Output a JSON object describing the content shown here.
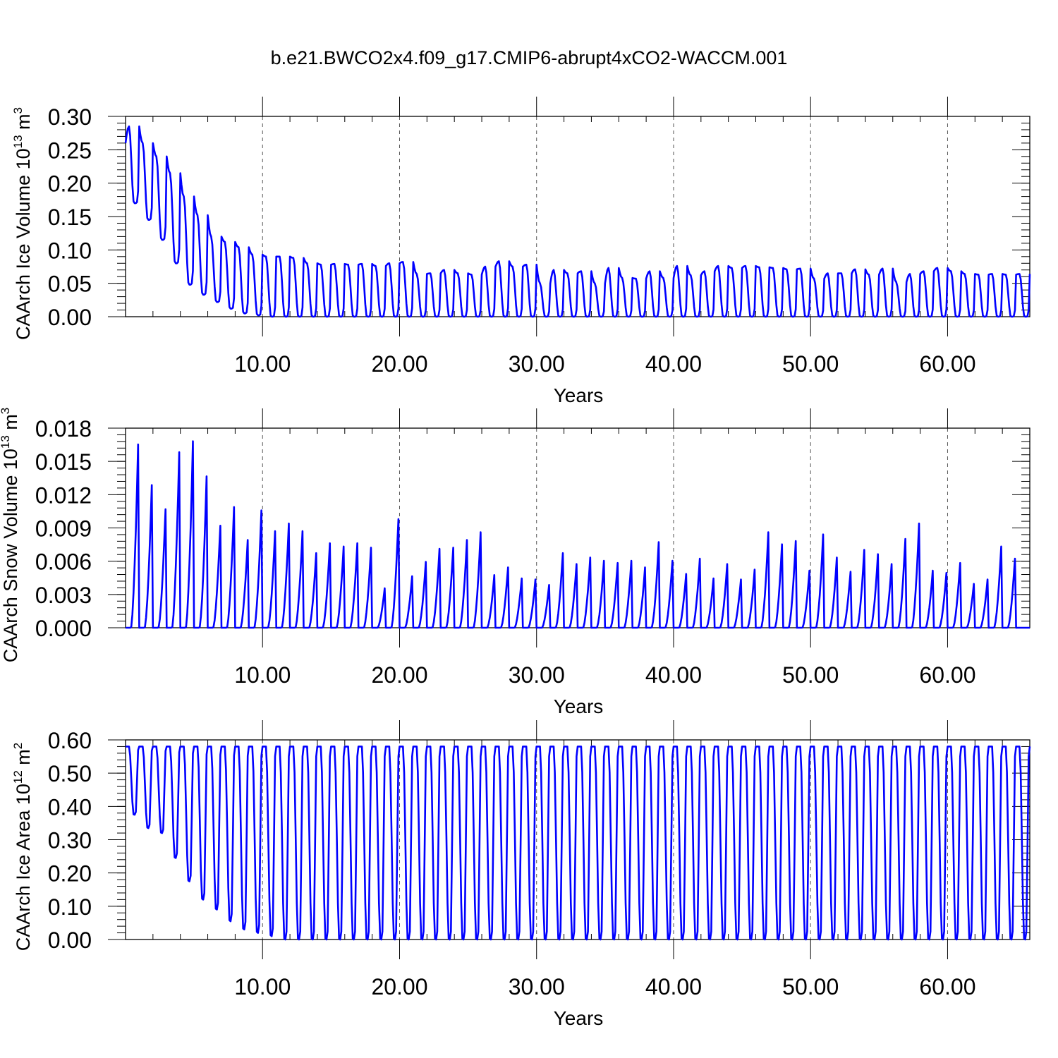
{
  "title": "b.e21.BWCO2x4.f09_g17.CMIP6-abrupt4xCO2-WACCM.001",
  "chart_data": [
    {
      "type": "line",
      "ylabel": "CAArch Ice Volume 10",
      "ylabel_exp": "13",
      "ylabel_unit": " m",
      "ylabel_unit_exp": "3",
      "xlabel": "Years",
      "xlim": [
        0,
        66
      ],
      "ylim": [
        0,
        0.3
      ],
      "x_ticks": [
        10,
        20,
        30,
        40,
        50,
        60
      ],
      "x_tick_labels": [
        "10.00",
        "20.00",
        "30.00",
        "40.00",
        "50.00",
        "60.00"
      ],
      "y_ticks": [
        0,
        0.05,
        0.1,
        0.15,
        0.2,
        0.25,
        0.3
      ],
      "y_tick_labels": [
        "0.00",
        "0.05",
        "0.10",
        "0.15",
        "0.20",
        "0.25",
        "0.30"
      ],
      "vertical_grid": "dashed",
      "series": [
        {
          "color": "#0000ff",
          "cycle_maxima": [
            0.285,
            0.26,
            0.24,
            0.215,
            0.18,
            0.152,
            0.12,
            0.112,
            0.104,
            0.093,
            0.09,
            0.09,
            0.088,
            0.08,
            0.078,
            0.079,
            0.078,
            0.079,
            0.076,
            0.08,
            0.082,
            0.064,
            0.065,
            0.07,
            0.065,
            0.063,
            0.075,
            0.083,
            0.075,
            0.078,
            0.05,
            0.07,
            0.065,
            0.068,
            0.05,
            0.073,
            0.058,
            0.057,
            0.068,
            0.058,
            0.076,
            0.062,
            0.068,
            0.076,
            0.073,
            0.076,
            0.074,
            0.073,
            0.071,
            0.072,
            0.057,
            0.065,
            0.065,
            0.071,
            0.063,
            0.072,
            0.052,
            0.064,
            0.068,
            0.073,
            0.068,
            0.064,
            0.063,
            0.064,
            0.063,
            0.064
          ],
          "cycle_minima": [
            0.195,
            0.17,
            0.145,
            0.115,
            0.08,
            0.048,
            0.033,
            0.022,
            0.012,
            0.005,
            0.002,
            0.0,
            0.0,
            0.0,
            0.0,
            0.0,
            0.0,
            0.0,
            0.0,
            0.0,
            0.0,
            0.0,
            0.0,
            0.0,
            0.0,
            0.0,
            0.0,
            0.0,
            0.0,
            0.0,
            0.0,
            0.0,
            0.0,
            0.0,
            0.0,
            0.0,
            0.0,
            0.0,
            0.0,
            0.0,
            0.0,
            0.0,
            0.0,
            0.0,
            0.0,
            0.0,
            0.0,
            0.0,
            0.0,
            0.0,
            0.0,
            0.0,
            0.0,
            0.0,
            0.0,
            0.0,
            0.0,
            0.0,
            0.0,
            0.0,
            0.0,
            0.0,
            0.0,
            0.0,
            0.0,
            0.0
          ]
        }
      ]
    },
    {
      "type": "line",
      "ylabel": "CAArch Snow Volume 10",
      "ylabel_exp": "13",
      "ylabel_unit": " m",
      "ylabel_unit_exp": "3",
      "xlabel": "Years",
      "xlim": [
        0,
        66
      ],
      "ylim": [
        0,
        0.018
      ],
      "x_ticks": [
        10,
        20,
        30,
        40,
        50,
        60
      ],
      "x_tick_labels": [
        "10.00",
        "20.00",
        "30.00",
        "40.00",
        "50.00",
        "60.00"
      ],
      "y_ticks": [
        0,
        0.003,
        0.006,
        0.009,
        0.012,
        0.015,
        0.018
      ],
      "y_tick_labels": [
        "0.000",
        "0.003",
        "0.006",
        "0.009",
        "0.012",
        "0.015",
        "0.018"
      ],
      "vertical_grid": "dashed",
      "series": [
        {
          "color": "#0000ff",
          "cycle_maxima": [
            0.0167,
            0.013,
            0.0108,
            0.016,
            0.017,
            0.0138,
            0.0093,
            0.011,
            0.008,
            0.0107,
            0.0088,
            0.0095,
            0.0088,
            0.0068,
            0.0077,
            0.0074,
            0.0077,
            0.0073,
            0.0036,
            0.0099,
            0.0047,
            0.006,
            0.0072,
            0.0073,
            0.008,
            0.0087,
            0.0048,
            0.0055,
            0.0045,
            0.0044,
            0.0039,
            0.0068,
            0.0058,
            0.0064,
            0.0061,
            0.0059,
            0.0061,
            0.0055,
            0.0078,
            0.0061,
            0.0049,
            0.0063,
            0.0045,
            0.0058,
            0.0044,
            0.0053,
            0.0087,
            0.0076,
            0.0079,
            0.0052,
            0.0085,
            0.0064,
            0.0051,
            0.0071,
            0.0067,
            0.0058,
            0.0081,
            0.0095,
            0.0052,
            0.005,
            0.0059,
            0.004,
            0.0044,
            0.0074,
            0.0063,
            0.0
          ]
        }
      ]
    },
    {
      "type": "line",
      "ylabel": "CAArch Ice Area 10",
      "ylabel_exp": "12",
      "ylabel_unit": " m",
      "ylabel_unit_exp": "2",
      "xlabel": "Years",
      "xlim": [
        0,
        66
      ],
      "ylim": [
        0,
        0.6
      ],
      "x_ticks": [
        10,
        20,
        30,
        40,
        50,
        60
      ],
      "x_tick_labels": [
        "10.00",
        "20.00",
        "30.00",
        "40.00",
        "50.00",
        "60.00"
      ],
      "y_ticks": [
        0,
        0.1,
        0.2,
        0.3,
        0.4,
        0.5,
        0.6
      ],
      "y_tick_labels": [
        "0.00",
        "0.10",
        "0.20",
        "0.30",
        "0.40",
        "0.50",
        "0.60"
      ],
      "vertical_grid": "dashed",
      "series": [
        {
          "color": "#0000ff",
          "cycle_maxima": [
            0.58
          ],
          "cycle_minima": [
            0.375,
            0.335,
            0.32,
            0.245,
            0.175,
            0.12,
            0.09,
            0.055,
            0.03,
            0.02,
            0.01,
            0.0
          ]
        }
      ]
    }
  ]
}
